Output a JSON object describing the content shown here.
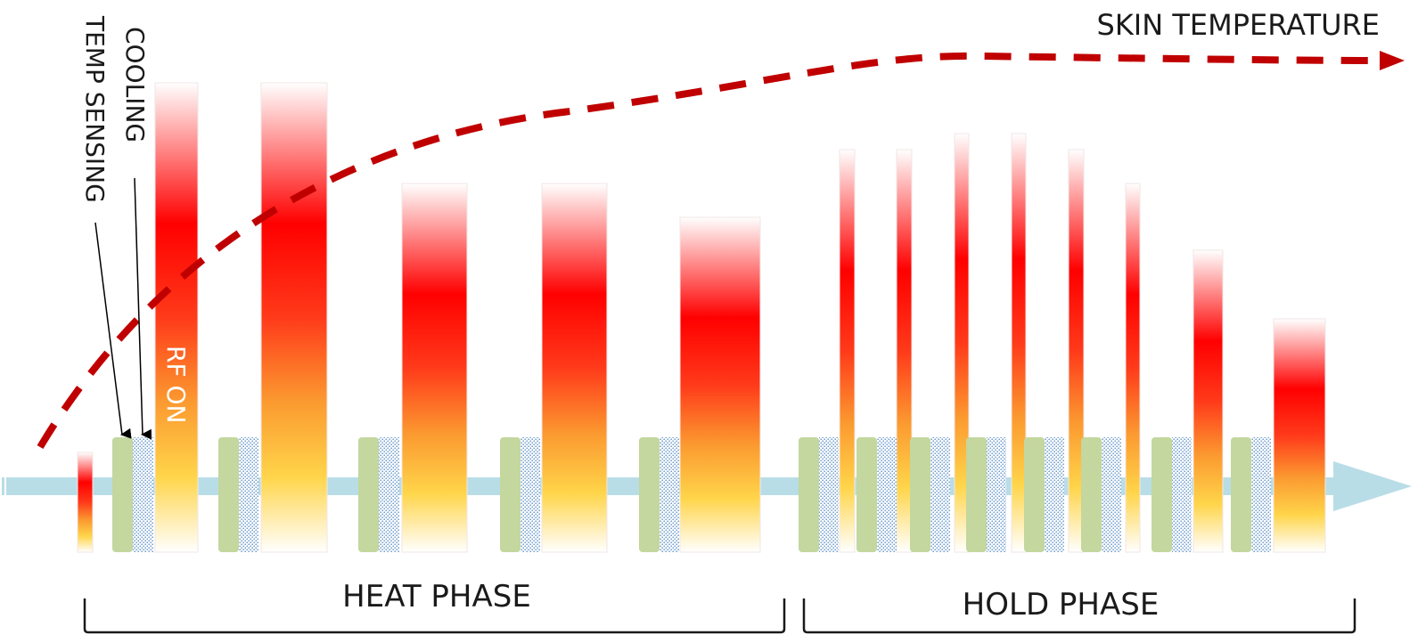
{
  "labels": {
    "skin_temperature": "SKIN TEMPERATURE",
    "cooling": "COOLING",
    "temp_sensing": "TEMP SENSING",
    "rf_on": "RF ON",
    "heat_phase": "HEAT PHASE",
    "hold_phase": "HOLD PHASE"
  },
  "colors": {
    "timeline": "#b9dde6",
    "temp_sensing_block": "#c3d79f",
    "cooling_block": "#5b8fc7",
    "temperature_curve": "#c00000",
    "rf_hot": "#ff0000",
    "rf_warm": "#ffd54a",
    "bracket": "#1a1a1a"
  },
  "icons": [
    "timeline-arrow-icon",
    "curve-arrowhead-icon",
    "pointer-arrow-icon"
  ]
}
